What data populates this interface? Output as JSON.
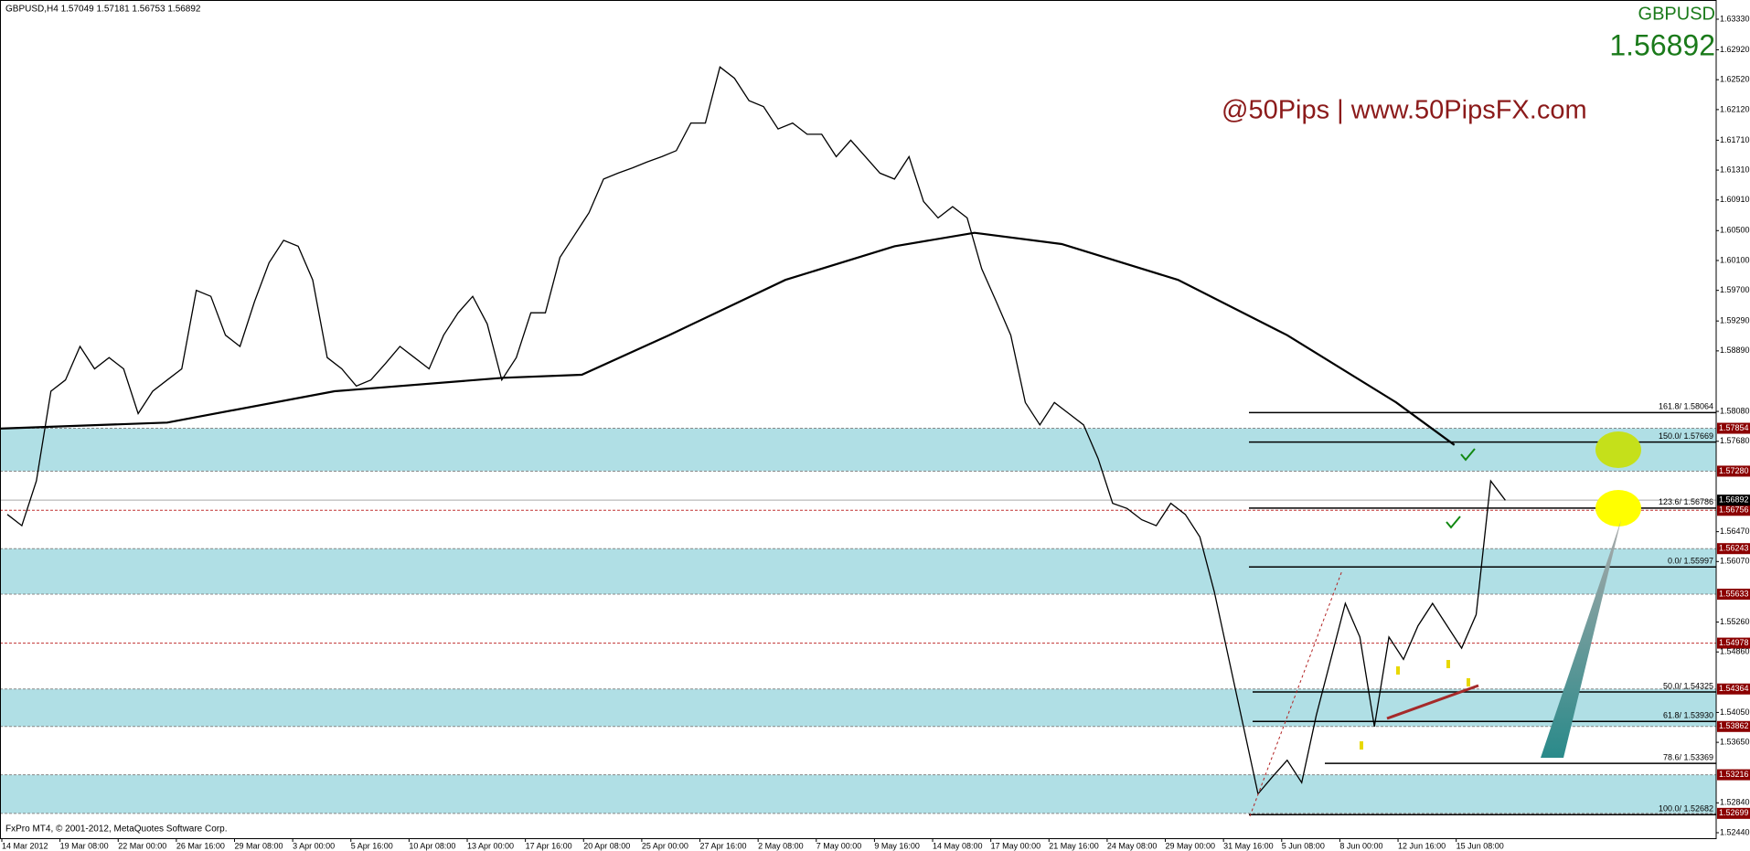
{
  "chart_data": {
    "type": "line",
    "header": "GBPUSD,H4  1.57049 1.57181 1.56753 1.56892",
    "symbol": "GBPUSD",
    "last_price": {
      "value": 1.56892,
      "label": "1.56892"
    },
    "watermark": "@50Pips | www.50PipsFX.com",
    "footer": "FxPro MT4, © 2001-2012, MetaQuotes Software Corp.",
    "ylim": [
      1.5244,
      1.6333
    ],
    "xlim": [
      0,
      118
    ],
    "yticks": [
      {
        "value": 1.6333,
        "label": "1.63330"
      },
      {
        "value": 1.6292,
        "label": "1.62920"
      },
      {
        "value": 1.6252,
        "label": "1.62520"
      },
      {
        "value": 1.6212,
        "label": "1.62120"
      },
      {
        "value": 1.6171,
        "label": "1.61710"
      },
      {
        "value": 1.6131,
        "label": "1.61310"
      },
      {
        "value": 1.6091,
        "label": "1.60910"
      },
      {
        "value": 1.605,
        "label": "1.60500"
      },
      {
        "value": 1.601,
        "label": "1.60100"
      },
      {
        "value": 1.597,
        "label": "1.59700"
      },
      {
        "value": 1.5929,
        "label": "1.59290"
      },
      {
        "value": 1.5889,
        "label": "1.58890"
      },
      {
        "value": 1.5808,
        "label": "1.58080"
      },
      {
        "value": 1.5768,
        "label": "1.57680"
      },
      {
        "value": 1.5647,
        "label": "1.56470"
      },
      {
        "value": 1.5607,
        "label": "1.56070"
      },
      {
        "value": 1.5526,
        "label": "1.55260"
      },
      {
        "value": 1.5486,
        "label": "1.54860"
      },
      {
        "value": 1.5405,
        "label": "1.54050"
      },
      {
        "value": 1.5365,
        "label": "1.53650"
      },
      {
        "value": 1.5284,
        "label": "1.52840"
      },
      {
        "value": 1.5244,
        "label": "1.52440"
      }
    ],
    "xticks": [
      {
        "value": 0,
        "label": "14 Mar 2012"
      },
      {
        "value": 4,
        "label": "19 Mar 08:00"
      },
      {
        "value": 8,
        "label": "22 Mar 00:00"
      },
      {
        "value": 12,
        "label": "26 Mar 16:00"
      },
      {
        "value": 16,
        "label": "29 Mar 08:00"
      },
      {
        "value": 20,
        "label": "3 Apr 00:00"
      },
      {
        "value": 24,
        "label": "5 Apr 16:00"
      },
      {
        "value": 28,
        "label": "10 Apr 08:00"
      },
      {
        "value": 32,
        "label": "13 Apr 00:00"
      },
      {
        "value": 36,
        "label": "17 Apr 16:00"
      },
      {
        "value": 40,
        "label": "20 Apr 08:00"
      },
      {
        "value": 44,
        "label": "25 Apr 00:00"
      },
      {
        "value": 48,
        "label": "27 Apr 16:00"
      },
      {
        "value": 52,
        "label": "2 May 08:00"
      },
      {
        "value": 56,
        "label": "7 May 00:00"
      },
      {
        "value": 60,
        "label": "9 May 16:00"
      },
      {
        "value": 64,
        "label": "14 May 08:00"
      },
      {
        "value": 68,
        "label": "17 May 00:00"
      },
      {
        "value": 72,
        "label": "21 May 16:00"
      },
      {
        "value": 76,
        "label": "24 May 08:00"
      },
      {
        "value": 80,
        "label": "29 May 00:00"
      },
      {
        "value": 84,
        "label": "31 May 16:00"
      },
      {
        "value": 88,
        "label": "5 Jun 08:00"
      },
      {
        "value": 92,
        "label": "8 Jun 00:00"
      },
      {
        "value": 96,
        "label": "12 Jun 16:00"
      },
      {
        "value": 100,
        "label": "15 Jun 08:00"
      }
    ],
    "series": [
      {
        "color": "#000000",
        "values": [
          1.567,
          1.5655,
          1.5715,
          1.5835,
          1.585,
          1.5895,
          1.5865,
          1.588,
          1.5865,
          1.5805,
          1.5835,
          1.585,
          1.5865,
          1.597,
          1.5962,
          1.591,
          1.5895,
          1.5955,
          1.6007,
          1.6037,
          1.6029,
          1.5984,
          1.588,
          1.5865,
          1.5842,
          1.585,
          1.5872,
          1.5895,
          1.588,
          1.5865,
          1.591,
          1.594,
          1.5962,
          1.5925,
          1.585,
          1.588,
          1.594,
          1.594,
          1.6014,
          1.6044,
          1.6074,
          1.6119,
          1.6127,
          1.6134,
          1.6142,
          1.6149,
          1.6157,
          1.6194,
          1.6194,
          1.6269,
          1.6254,
          1.6224,
          1.6216,
          1.6186,
          1.6194,
          1.6179,
          1.6179,
          1.6149,
          1.6171,
          1.6149,
          1.6127,
          1.6119,
          1.6149,
          1.6089,
          1.6067,
          1.6082,
          1.6067,
          1.5999,
          1.5955,
          1.591,
          1.582,
          1.579,
          1.582,
          1.5805,
          1.579,
          1.5745,
          1.5685,
          1.5678,
          1.5663,
          1.5655,
          1.5685,
          1.567,
          1.564,
          1.5566,
          1.5476,
          1.5386,
          1.5296,
          1.5319,
          1.5341,
          1.5311,
          1.5401,
          1.5476,
          1.5551,
          1.5506,
          1.5386,
          1.5506,
          1.5476,
          1.5521,
          1.5551,
          1.5521,
          1.5491,
          1.5536,
          1.5715,
          1.5689
        ]
      }
    ],
    "moving_average": {
      "color": "#000000",
      "x": [
        0,
        11.5,
        23,
        34.6,
        40,
        46,
        54,
        61.5,
        67,
        73,
        81,
        88.5,
        96,
        100
      ],
      "values": [
        1.5785,
        1.5793,
        1.5835,
        1.5853,
        1.5857,
        1.591,
        1.5984,
        1.6029,
        1.6047,
        1.6032,
        1.5984,
        1.591,
        1.582,
        1.5763
      ]
    },
    "zones": [
      {
        "high": {
          "value": 1.57854,
          "label": "1.57854"
        },
        "low": {
          "value": 1.5728,
          "label": "1.57280"
        }
      },
      {
        "high": {
          "value": 1.56243,
          "label": "1.56243"
        },
        "low": {
          "value": 1.55633,
          "label": "1.55633"
        }
      },
      {
        "high": {
          "value": 1.54364,
          "label": "1.54364"
        },
        "low": {
          "value": 1.53862,
          "label": "1.53862"
        }
      },
      {
        "high": {
          "value": 1.53216,
          "label": "1.53216"
        },
        "low": {
          "value": 1.52699,
          "label": "1.52699"
        }
      }
    ],
    "zone_color": "#b0dfe5",
    "levels": [
      {
        "value": 1.56756,
        "label": "1.56756"
      },
      {
        "value": 1.54978,
        "label": "1.54978"
      }
    ],
    "fib_levels": [
      {
        "value": 1.58064,
        "label": "161.8/ 1.58064"
      },
      {
        "value": 1.57669,
        "label": "150.0/ 1.57669"
      },
      {
        "value": 1.56786,
        "label": "123.6/ 1.56786"
      },
      {
        "value": 1.55997,
        "label": "0.0/ 1.55997"
      },
      {
        "value": 1.54325,
        "label": "50.0/ 1.54325"
      },
      {
        "value": 1.5393,
        "label": "61.8/ 1.53930"
      },
      {
        "value": 1.53369,
        "label": "78.6/ 1.53369"
      },
      {
        "value": 1.52682,
        "label": "100.0/ 1.52682"
      }
    ]
  }
}
